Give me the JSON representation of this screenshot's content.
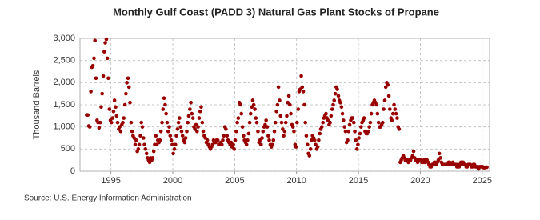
{
  "chart_data": {
    "type": "scatter",
    "title": "Monthly Gulf Coast (PADD 3) Natural Gas Plant Stocks of Propane",
    "y_label": "Thousand Barrels",
    "source": "Source: U.S. Energy Information Administration",
    "color": "#990000",
    "grid": true,
    "xlim": [
      1992.5,
      2025.6
    ],
    "ylim": [
      0,
      3000
    ],
    "xticks": [
      1995,
      2000,
      2005,
      2010,
      2015,
      2020,
      2025
    ],
    "yticks": [
      0,
      500,
      {
        "value": 1000,
        "label": "1,000"
      },
      {
        "value": 1500,
        "label": "1,500"
      },
      {
        "value": 2000,
        "label": "2,000"
      },
      {
        "value": 2500,
        "label": "2,500"
      },
      {
        "value": 3000,
        "label": "3,000"
      }
    ],
    "x": [
      1993.04,
      1993.13,
      1993.21,
      1993.29,
      1993.38,
      1993.46,
      1993.54,
      1993.63,
      1993.71,
      1993.79,
      1993.88,
      1993.96,
      1994.04,
      1994.13,
      1994.21,
      1994.29,
      1994.38,
      1994.46,
      1994.54,
      1994.63,
      1994.71,
      1994.79,
      1994.88,
      1994.96,
      1995.04,
      1995.13,
      1995.21,
      1995.29,
      1995.38,
      1995.46,
      1995.54,
      1995.63,
      1995.71,
      1995.79,
      1995.88,
      1995.96,
      1996.04,
      1996.13,
      1996.21,
      1996.29,
      1996.38,
      1996.46,
      1996.54,
      1996.63,
      1996.71,
      1996.79,
      1996.88,
      1996.96,
      1997.04,
      1997.13,
      1997.21,
      1997.29,
      1997.38,
      1997.46,
      1997.54,
      1997.63,
      1997.71,
      1997.79,
      1997.88,
      1997.96,
      1998.04,
      1998.13,
      1998.21,
      1998.29,
      1998.38,
      1998.46,
      1998.54,
      1998.63,
      1998.71,
      1998.79,
      1998.88,
      1998.96,
      1999.04,
      1999.13,
      1999.21,
      1999.29,
      1999.38,
      1999.46,
      1999.54,
      1999.63,
      1999.71,
      1999.79,
      1999.88,
      1999.96,
      2000.04,
      2000.13,
      2000.21,
      2000.29,
      2000.38,
      2000.46,
      2000.54,
      2000.63,
      2000.71,
      2000.79,
      2000.88,
      2000.96,
      2001.04,
      2001.13,
      2001.21,
      2001.29,
      2001.38,
      2001.46,
      2001.54,
      2001.63,
      2001.71,
      2001.79,
      2001.88,
      2001.96,
      2002.04,
      2002.13,
      2002.21,
      2002.29,
      2002.38,
      2002.46,
      2002.54,
      2002.63,
      2002.71,
      2002.79,
      2002.88,
      2002.96,
      2003.04,
      2003.13,
      2003.21,
      2003.29,
      2003.38,
      2003.46,
      2003.54,
      2003.63,
      2003.71,
      2003.79,
      2003.88,
      2003.96,
      2004.04,
      2004.13,
      2004.21,
      2004.29,
      2004.38,
      2004.46,
      2004.54,
      2004.63,
      2004.71,
      2004.79,
      2004.88,
      2004.96,
      2005.04,
      2005.13,
      2005.21,
      2005.29,
      2005.38,
      2005.46,
      2005.54,
      2005.63,
      2005.71,
      2005.79,
      2005.88,
      2005.96,
      2006.04,
      2006.13,
      2006.21,
      2006.29,
      2006.38,
      2006.46,
      2006.54,
      2006.63,
      2006.71,
      2006.79,
      2006.88,
      2006.96,
      2007.04,
      2007.13,
      2007.21,
      2007.29,
      2007.38,
      2007.46,
      2007.54,
      2007.63,
      2007.71,
      2007.79,
      2007.88,
      2007.96,
      2008.04,
      2008.13,
      2008.21,
      2008.29,
      2008.38,
      2008.46,
      2008.54,
      2008.63,
      2008.71,
      2008.79,
      2008.88,
      2008.96,
      2009.04,
      2009.13,
      2009.21,
      2009.29,
      2009.38,
      2009.46,
      2009.54,
      2009.63,
      2009.71,
      2009.79,
      2009.88,
      2009.96,
      2010.04,
      2010.13,
      2010.21,
      2010.29,
      2010.38,
      2010.46,
      2010.54,
      2010.63,
      2010.71,
      2010.79,
      2010.88,
      2010.96,
      2011.04,
      2011.13,
      2011.21,
      2011.29,
      2011.38,
      2011.46,
      2011.54,
      2011.63,
      2011.71,
      2011.79,
      2011.88,
      2011.96,
      2012.04,
      2012.13,
      2012.21,
      2012.29,
      2012.38,
      2012.46,
      2012.54,
      2012.63,
      2012.71,
      2012.79,
      2012.88,
      2012.96,
      2013.04,
      2013.13,
      2013.21,
      2013.29,
      2013.38,
      2013.46,
      2013.54,
      2013.63,
      2013.71,
      2013.79,
      2013.88,
      2013.96,
      2014.04,
      2014.13,
      2014.21,
      2014.29,
      2014.38,
      2014.46,
      2014.54,
      2014.63,
      2014.71,
      2014.79,
      2014.88,
      2014.96,
      2015.04,
      2015.13,
      2015.21,
      2015.29,
      2015.38,
      2015.46,
      2015.54,
      2015.63,
      2015.71,
      2015.79,
      2015.88,
      2015.96,
      2016.04,
      2016.13,
      2016.21,
      2016.29,
      2016.38,
      2016.46,
      2016.54,
      2016.63,
      2016.71,
      2016.79,
      2016.88,
      2016.96,
      2017.04,
      2017.13,
      2017.21,
      2017.29,
      2017.38,
      2017.46,
      2017.54,
      2017.63,
      2017.71,
      2017.79,
      2017.88,
      2017.96,
      2018.04,
      2018.13,
      2018.21,
      2018.29,
      2018.38,
      2018.46,
      2018.54,
      2018.63,
      2018.71,
      2018.79,
      2018.88,
      2018.96,
      2019.04,
      2019.13,
      2019.21,
      2019.29,
      2019.38,
      2019.46,
      2019.54,
      2019.63,
      2019.71,
      2019.79,
      2019.88,
      2019.96,
      2020.04,
      2020.13,
      2020.21,
      2020.29,
      2020.38,
      2020.46,
      2020.54,
      2020.63,
      2020.71,
      2020.79,
      2020.88,
      2020.96,
      2021.04,
      2021.13,
      2021.21,
      2021.29,
      2021.38,
      2021.46,
      2021.54,
      2021.63,
      2021.71,
      2021.79,
      2021.88,
      2021.96,
      2022.04,
      2022.13,
      2022.21,
      2022.29,
      2022.38,
      2022.46,
      2022.54,
      2022.63,
      2022.71,
      2022.79,
      2022.88,
      2022.96,
      2023.04,
      2023.13,
      2023.21,
      2023.29,
      2023.38,
      2023.46,
      2023.54,
      2023.63,
      2023.71,
      2023.79,
      2023.88,
      2023.96,
      2024.04,
      2024.13,
      2024.21,
      2024.29,
      2024.38,
      2024.46,
      2024.54,
      2024.63,
      2024.71,
      2024.79,
      2024.88,
      2024.96,
      2025.04,
      2025.13,
      2025.21,
      2025.29,
      2025.38
    ],
    "values": [
      1270,
      1270,
      1020,
      1000,
      1800,
      2350,
      2380,
      2550,
      2950,
      2100,
      1150,
      1100,
      980,
      1100,
      1450,
      1750,
      2150,
      2700,
      2900,
      2980,
      2550,
      2100,
      1400,
      1150,
      1100,
      1200,
      1350,
      1600,
      1450,
      1250,
      1100,
      950,
      1000,
      900,
      1050,
      1100,
      1200,
      1500,
      1750,
      2000,
      2100,
      1900,
      1550,
      1100,
      900,
      800,
      750,
      600,
      700,
      450,
      500,
      600,
      800,
      1100,
      1000,
      750,
      600,
      500,
      400,
      300,
      250,
      200,
      300,
      250,
      300,
      450,
      600,
      800,
      600,
      700,
      650,
      700,
      900,
      1100,
      1400,
      1650,
      1500,
      1300,
      1100,
      900,
      1000,
      800,
      700,
      600,
      400,
      500,
      600,
      800,
      950,
      1100,
      1200,
      1000,
      900,
      800,
      700,
      650,
      750,
      900,
      1100,
      1250,
      1400,
      1550,
      1300,
      1200,
      1000,
      950,
      1050,
      900,
      1000,
      1200,
      1350,
      1450,
      1100,
      900,
      800,
      750,
      650,
      700,
      600,
      550,
      500,
      550,
      600,
      700,
      650,
      650,
      700,
      700,
      600,
      600,
      650,
      600,
      700,
      800,
      1000,
      950,
      800,
      700,
      650,
      600,
      650,
      550,
      600,
      500,
      700,
      900,
      1100,
      1200,
      1550,
      1500,
      1300,
      1000,
      800,
      700,
      650,
      600,
      700,
      850,
      1100,
      1300,
      1450,
      1600,
      1500,
      1400,
      1200,
      1100,
      900,
      650,
      700,
      600,
      750,
      900,
      1000,
      1050,
      1150,
      1000,
      800,
      700,
      600,
      550,
      600,
      700,
      900,
      1100,
      1350,
      1500,
      1900,
      1600,
      1250,
      1100,
      950,
      800,
      900,
      1100,
      1250,
      1550,
      1700,
      1500,
      1300,
      1050,
      1000,
      900,
      600,
      550,
      1100,
      1400,
      1800,
      1850,
      2150,
      1900,
      1800,
      1500,
      1100,
      800,
      600,
      400,
      350,
      500,
      700,
      800,
      750,
      700,
      600,
      500,
      550,
      700,
      850,
      950,
      1000,
      1100,
      1200,
      1250,
      1300,
      1200,
      1150,
      1050,
      1100,
      1250,
      1400,
      1500,
      1600,
      1750,
      1900,
      1850,
      1700,
      1600,
      1550,
      1450,
      1300,
      1150,
      1000,
      900,
      650,
      700,
      900,
      1050,
      1150,
      1200,
      1200,
      1100,
      900,
      700,
      500,
      600,
      750,
      850,
      1000,
      1100,
      1150,
      1200,
      900,
      850,
      850,
      900,
      1000,
      1100,
      1300,
      1500,
      1550,
      1600,
      1550,
      1500,
      1300,
      1100,
      1000,
      1000,
      1050,
      1100,
      1400,
      1600,
      1900,
      2000,
      1950,
      1700,
      1400,
      1200,
      1150,
      1300,
      1500,
      1400,
      1300,
      1200,
      1000,
      950,
      200,
      250,
      300,
      350,
      300,
      250,
      250,
      250,
      200,
      250,
      250,
      300,
      350,
      450,
      300,
      250,
      250,
      200,
      250,
      250,
      250,
      200,
      200,
      250,
      200,
      250,
      250,
      200,
      150,
      100,
      100,
      150,
      150,
      200,
      200,
      150,
      200,
      250,
      400,
      300,
      200,
      150,
      150,
      150,
      150,
      150,
      150,
      200,
      200,
      150,
      150,
      200,
      150,
      150,
      150,
      100,
      150,
      100,
      150,
      200,
      200,
      200,
      150,
      150,
      100,
      100,
      150,
      150,
      150,
      100,
      100,
      150,
      150,
      100,
      100,
      100,
      50,
      100,
      100,
      100,
      100,
      80,
      80,
      90,
      90
    ]
  }
}
